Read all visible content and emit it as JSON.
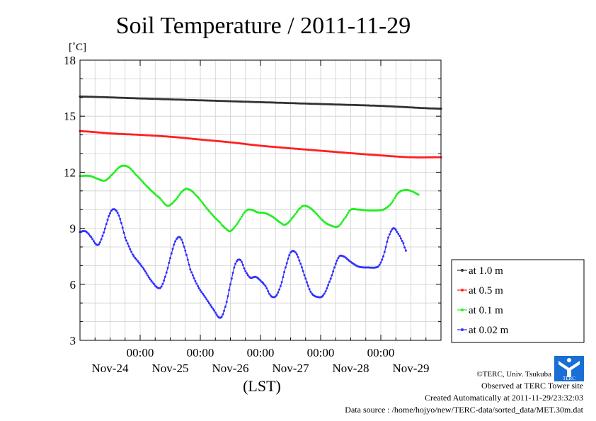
{
  "chart_data": {
    "type": "line",
    "title": "Soil Temperature / 2011-11-29",
    "ylabel": "[˚C]",
    "xlabel": "(LST)",
    "ylim": [
      3,
      18
    ],
    "yticks": [
      3,
      6,
      9,
      12,
      15,
      18
    ],
    "xlim_hours": [
      0,
      144
    ],
    "xtick_time_label": "00:00",
    "xtick_date_labels": [
      "Nov-24",
      "Nov-25",
      "Nov-26",
      "Nov-27",
      "Nov-28",
      "Nov-29"
    ],
    "grid": true,
    "legend_placement": "right",
    "series": [
      {
        "name": "at 1.0 m",
        "color": "#333333",
        "points": [
          [
            0,
            16.05
          ],
          [
            24,
            15.95
          ],
          [
            48,
            15.85
          ],
          [
            72,
            15.75
          ],
          [
            96,
            15.65
          ],
          [
            120,
            15.55
          ],
          [
            144,
            15.4
          ]
        ]
      },
      {
        "name": "at 0.5 m",
        "color": "#ff2020",
        "points": [
          [
            0,
            14.2
          ],
          [
            12,
            14.08
          ],
          [
            24,
            14.0
          ],
          [
            36,
            13.9
          ],
          [
            48,
            13.75
          ],
          [
            60,
            13.6
          ],
          [
            72,
            13.42
          ],
          [
            84,
            13.28
          ],
          [
            96,
            13.15
          ],
          [
            108,
            13.02
          ],
          [
            120,
            12.9
          ],
          [
            132,
            12.8
          ],
          [
            144,
            12.8
          ]
        ]
      },
      {
        "name": "at 0.1 m",
        "color": "#20ee20",
        "points": [
          [
            0,
            11.8
          ],
          [
            4,
            11.8
          ],
          [
            7,
            11.65
          ],
          [
            10,
            11.55
          ],
          [
            13,
            11.9
          ],
          [
            16,
            12.3
          ],
          [
            19,
            12.3
          ],
          [
            22,
            11.9
          ],
          [
            27,
            11.2
          ],
          [
            32,
            10.6
          ],
          [
            35,
            10.2
          ],
          [
            38,
            10.5
          ],
          [
            41,
            11.0
          ],
          [
            43,
            11.1
          ],
          [
            46,
            10.8
          ],
          [
            51,
            10.0
          ],
          [
            56,
            9.3
          ],
          [
            58,
            9.0
          ],
          [
            60,
            8.85
          ],
          [
            63,
            9.3
          ],
          [
            66,
            9.9
          ],
          [
            68,
            10.0
          ],
          [
            71,
            9.85
          ],
          [
            74,
            9.8
          ],
          [
            77,
            9.6
          ],
          [
            80,
            9.3
          ],
          [
            82,
            9.2
          ],
          [
            85,
            9.6
          ],
          [
            88,
            10.1
          ],
          [
            90,
            10.2
          ],
          [
            93,
            9.95
          ],
          [
            97,
            9.4
          ],
          [
            100,
            9.15
          ],
          [
            103,
            9.1
          ],
          [
            106,
            9.6
          ],
          [
            108,
            10.0
          ],
          [
            111,
            10.0
          ],
          [
            116,
            9.95
          ],
          [
            121,
            10.0
          ],
          [
            124,
            10.3
          ],
          [
            127,
            10.9
          ],
          [
            130,
            11.05
          ],
          [
            133,
            10.95
          ],
          [
            135,
            10.8
          ]
        ]
      },
      {
        "name": "at 0.02 m",
        "color": "#3030ff",
        "points": [
          [
            0,
            8.8
          ],
          [
            2,
            8.85
          ],
          [
            4,
            8.6
          ],
          [
            7,
            8.1
          ],
          [
            9,
            8.6
          ],
          [
            12,
            9.8
          ],
          [
            14,
            10.0
          ],
          [
            16,
            9.5
          ],
          [
            18,
            8.5
          ],
          [
            21,
            7.6
          ],
          [
            25,
            6.9
          ],
          [
            29,
            6.1
          ],
          [
            32,
            5.8
          ],
          [
            34,
            6.4
          ],
          [
            36,
            7.4
          ],
          [
            38,
            8.3
          ],
          [
            40,
            8.5
          ],
          [
            42,
            7.8
          ],
          [
            44,
            6.8
          ],
          [
            47,
            5.9
          ],
          [
            50,
            5.3
          ],
          [
            53,
            4.7
          ],
          [
            56,
            4.2
          ],
          [
            58,
            4.8
          ],
          [
            60,
            6.0
          ],
          [
            62,
            7.1
          ],
          [
            64,
            7.3
          ],
          [
            66,
            6.7
          ],
          [
            68,
            6.35
          ],
          [
            70,
            6.4
          ],
          [
            72,
            6.2
          ],
          [
            74,
            5.9
          ],
          [
            76,
            5.4
          ],
          [
            78,
            5.35
          ],
          [
            80,
            5.9
          ],
          [
            82,
            6.9
          ],
          [
            84,
            7.7
          ],
          [
            86,
            7.7
          ],
          [
            88,
            7.1
          ],
          [
            90,
            6.3
          ],
          [
            92,
            5.6
          ],
          [
            94,
            5.35
          ],
          [
            97,
            5.4
          ],
          [
            100,
            6.3
          ],
          [
            103,
            7.4
          ],
          [
            105,
            7.5
          ],
          [
            108,
            7.2
          ],
          [
            111,
            6.95
          ],
          [
            115,
            6.9
          ],
          [
            119,
            6.95
          ],
          [
            121,
            7.5
          ],
          [
            123,
            8.5
          ],
          [
            125,
            9.0
          ],
          [
            127,
            8.7
          ],
          [
            129,
            8.2
          ],
          [
            130,
            7.8
          ]
        ]
      }
    ]
  },
  "footer": {
    "credit": "©TERC, Univ. Tsukuba",
    "observed": "Observed at TERC Tower site",
    "created": "Created Automatically at 2011-11-29/23:32:03",
    "source": "Data source : /home/hojyo/new/TERC-data/sorted_data/MET.30m.dat"
  },
  "logo": {
    "text": "TERC",
    "color": "#1a6fd6"
  }
}
